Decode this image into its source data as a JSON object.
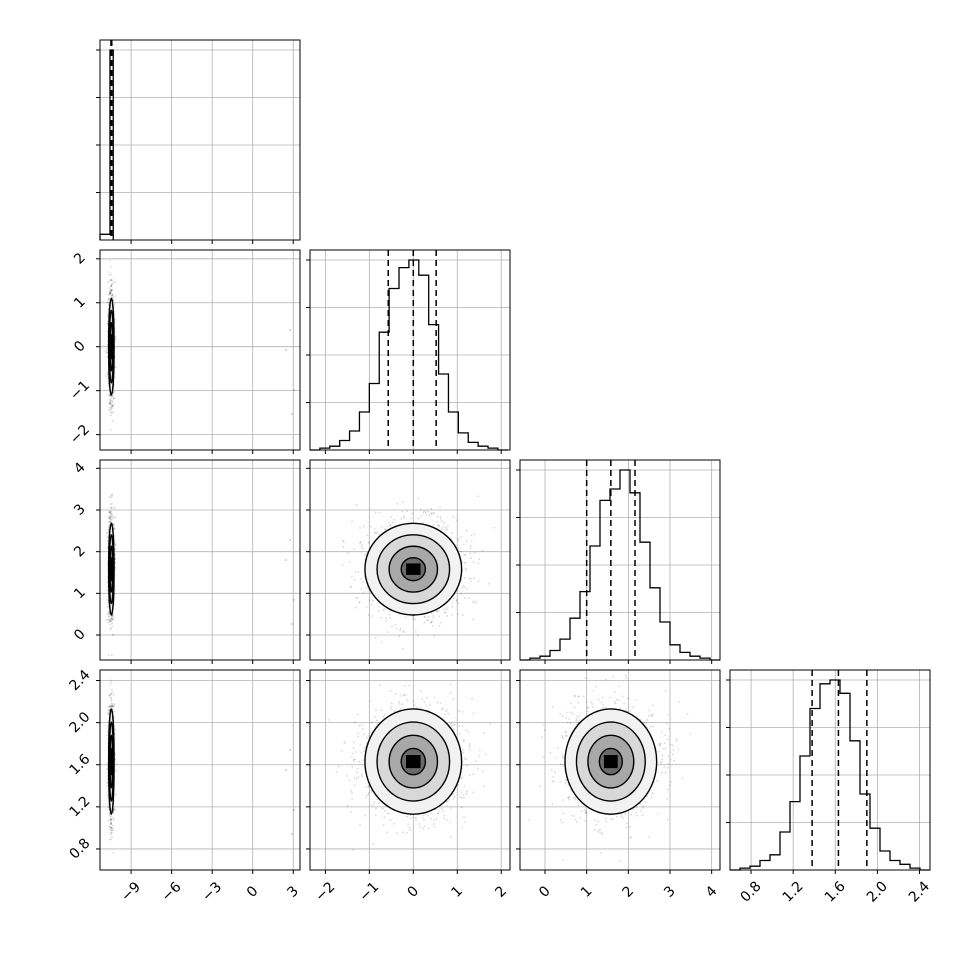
{
  "chart_data": {
    "type": "corner",
    "title": "",
    "grid": true,
    "parameters": [
      {
        "index": 0,
        "range": [
          -11.3,
          3.5
        ],
        "ticks": [
          -9,
          -6,
          -3,
          0,
          3
        ],
        "tick_labels": [
          "−9",
          "−6",
          "−3",
          "0",
          "3"
        ],
        "quantiles": [
          -10.49,
          -10.46,
          -10.43
        ],
        "center": -10.46,
        "sigma": 0.1,
        "label": ""
      },
      {
        "index": 1,
        "range": [
          -2.35,
          2.2
        ],
        "ticks": [
          -2,
          -1,
          0,
          1,
          2
        ],
        "tick_labels": [
          "−2",
          "−1",
          "0",
          "1",
          "2"
        ],
        "quantiles": [
          -0.57,
          0.0,
          0.52
        ],
        "center": 0.0,
        "sigma": 0.55,
        "label": ""
      },
      {
        "index": 2,
        "range": [
          -0.6,
          4.2
        ],
        "ticks": [
          0,
          1,
          2,
          3,
          4
        ],
        "tick_labels": [
          "0",
          "1",
          "2",
          "3",
          "4"
        ],
        "quantiles": [
          1.0,
          1.58,
          2.16
        ],
        "center": 1.58,
        "sigma": 0.55,
        "label": ""
      },
      {
        "index": 3,
        "range": [
          0.6,
          2.5
        ],
        "ticks": [
          0.8,
          1.2,
          1.6,
          2.0,
          2.4
        ],
        "tick_labels": [
          "0.8",
          "1.2",
          "1.6",
          "2.0",
          "2.4"
        ],
        "quantiles": [
          1.38,
          1.63,
          1.9
        ],
        "center": 1.63,
        "sigma": 0.25,
        "label": ""
      }
    ],
    "histograms": [
      {
        "param": 0,
        "bin_edges": [
          -11.3,
          -10.56,
          -10.32
        ],
        "counts": [
          0.03,
          1.0
        ]
      },
      {
        "param": 1,
        "bin_edges": [
          -2.35,
          -2.125,
          -1.9,
          -1.675,
          -1.45,
          -1.225,
          -1.0,
          -0.775,
          -0.55,
          -0.325,
          -0.1,
          0.125,
          0.35,
          0.575,
          0.8,
          1.025,
          1.25,
          1.475,
          1.7,
          1.925,
          2.15
        ],
        "counts": [
          0.0,
          0.01,
          0.02,
          0.05,
          0.1,
          0.2,
          0.35,
          0.62,
          0.85,
          0.96,
          1.0,
          0.92,
          0.66,
          0.4,
          0.2,
          0.09,
          0.04,
          0.02,
          0.01,
          0.0
        ]
      },
      {
        "param": 2,
        "bin_edges": [
          -0.6,
          -0.36,
          -0.12,
          0.12,
          0.36,
          0.6,
          0.84,
          1.08,
          1.32,
          1.56,
          1.8,
          2.04,
          2.28,
          2.52,
          2.76,
          3.0,
          3.24,
          3.48,
          3.72,
          3.96,
          4.2
        ],
        "counts": [
          0.0,
          0.01,
          0.02,
          0.05,
          0.11,
          0.22,
          0.36,
          0.6,
          0.84,
          0.9,
          1.0,
          0.88,
          0.62,
          0.38,
          0.2,
          0.08,
          0.04,
          0.02,
          0.01,
          0.0
        ]
      },
      {
        "param": 3,
        "bin_edges": [
          0.6,
          0.695,
          0.79,
          0.885,
          0.98,
          1.075,
          1.17,
          1.265,
          1.36,
          1.455,
          1.55,
          1.645,
          1.74,
          1.835,
          1.93,
          2.025,
          2.12,
          2.215,
          2.31,
          2.405,
          2.5
        ],
        "counts": [
          0.0,
          0.01,
          0.02,
          0.05,
          0.08,
          0.2,
          0.36,
          0.6,
          0.85,
          0.98,
          1.0,
          0.93,
          0.68,
          0.4,
          0.22,
          0.1,
          0.05,
          0.03,
          0.01,
          0.0
        ]
      }
    ],
    "scatter_panels": [
      {
        "x_param": 0,
        "y_param": 1,
        "sigma_x": 0.1,
        "sigma_y": 0.55,
        "center": [
          -10.46,
          0.0
        ]
      },
      {
        "x_param": 0,
        "y_param": 2,
        "sigma_x": 0.1,
        "sigma_y": 0.55,
        "center": [
          -10.46,
          1.58
        ]
      },
      {
        "x_param": 1,
        "y_param": 2,
        "sigma_x": 0.55,
        "sigma_y": 0.55,
        "center": [
          0.0,
          1.58
        ]
      },
      {
        "x_param": 0,
        "y_param": 3,
        "sigma_x": 0.1,
        "sigma_y": 0.25,
        "center": [
          -10.46,
          1.63
        ]
      },
      {
        "x_param": 1,
        "y_param": 3,
        "sigma_x": 0.55,
        "sigma_y": 0.25,
        "center": [
          0.0,
          1.63
        ]
      },
      {
        "x_param": 2,
        "y_param": 3,
        "sigma_x": 0.55,
        "sigma_y": 0.25,
        "center": [
          1.58,
          1.63
        ]
      }
    ],
    "contour_levels_sigma": [
      0.5,
      1.0,
      1.5,
      2.0
    ],
    "colors": {
      "hist": "#000000",
      "points": "#000000",
      "grid": "#b0b0b0",
      "density": "#000000"
    }
  }
}
